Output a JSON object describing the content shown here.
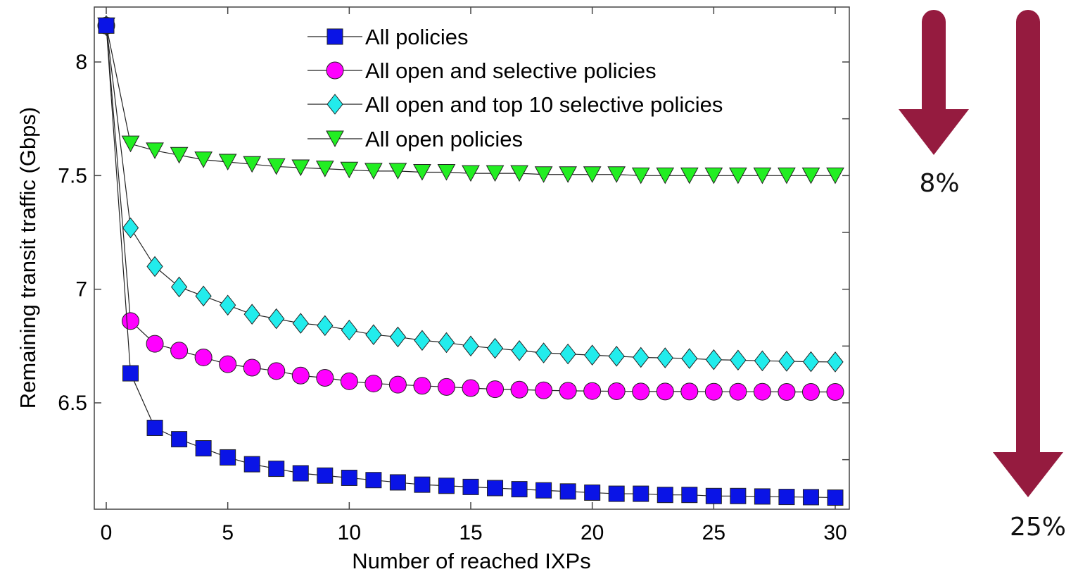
{
  "chart_data": {
    "type": "line",
    "title": "",
    "xlabel": "Number of reached IXPs",
    "ylabel": "Remaining transit traffic (Gbps)",
    "xlim": [
      -0.5,
      30.5
    ],
    "ylim": [
      6.08,
      8.2
    ],
    "xticks": [
      0,
      5,
      10,
      15,
      20,
      25,
      30
    ],
    "xtick_labels": [
      "0",
      "5",
      "10",
      "15",
      "20",
      "25",
      "30"
    ],
    "yticks": [
      6.5,
      7,
      7.5,
      8
    ],
    "ytick_labels": [
      "6.5",
      "7",
      "7.5",
      "8"
    ],
    "grid": false,
    "legend_position": "top",
    "x": [
      0,
      1,
      2,
      3,
      4,
      5,
      6,
      7,
      8,
      9,
      10,
      11,
      12,
      13,
      14,
      15,
      16,
      17,
      18,
      19,
      20,
      21,
      22,
      23,
      24,
      25,
      26,
      27,
      28,
      29,
      30
    ],
    "series": [
      {
        "name": "All policies",
        "marker": "square",
        "color": "#0a14e6",
        "values": [
          8.16,
          6.63,
          6.39,
          6.34,
          6.3,
          6.26,
          6.23,
          6.21,
          6.19,
          6.18,
          6.17,
          6.16,
          6.15,
          6.14,
          6.135,
          6.13,
          6.125,
          6.12,
          6.115,
          6.11,
          6.105,
          6.1,
          6.1,
          6.095,
          6.095,
          6.09,
          6.09,
          6.088,
          6.086,
          6.085,
          6.083
        ]
      },
      {
        "name": "All open and selective policies",
        "marker": "circle",
        "color": "#ff00ff",
        "values": [
          8.16,
          6.86,
          6.76,
          6.73,
          6.7,
          6.67,
          6.655,
          6.64,
          6.62,
          6.61,
          6.595,
          6.585,
          6.58,
          6.575,
          6.57,
          6.565,
          6.56,
          6.558,
          6.555,
          6.553,
          6.552,
          6.551,
          6.55,
          6.55,
          6.55,
          6.549,
          6.549,
          6.549,
          6.548,
          6.548,
          6.548
        ]
      },
      {
        "name": "All open and top 10 selective policies",
        "marker": "diamond",
        "color": "#22ecec",
        "values": [
          8.16,
          7.27,
          7.1,
          7.01,
          6.97,
          6.93,
          6.89,
          6.87,
          6.85,
          6.84,
          6.82,
          6.8,
          6.79,
          6.775,
          6.765,
          6.75,
          6.74,
          6.73,
          6.72,
          6.715,
          6.71,
          6.705,
          6.7,
          6.698,
          6.695,
          6.69,
          6.688,
          6.685,
          6.683,
          6.681,
          6.68
        ]
      },
      {
        "name": "All open policies",
        "marker": "triangle-down",
        "color": "#22ee22",
        "values": [
          8.16,
          7.64,
          7.61,
          7.59,
          7.57,
          7.56,
          7.55,
          7.54,
          7.535,
          7.53,
          7.525,
          7.52,
          7.52,
          7.515,
          7.515,
          7.51,
          7.51,
          7.51,
          7.505,
          7.505,
          7.505,
          7.505,
          7.5,
          7.5,
          7.5,
          7.5,
          7.5,
          7.5,
          7.5,
          7.5,
          7.5
        ]
      }
    ]
  },
  "annotations": [
    {
      "label": "8%",
      "color": "#951b3f"
    },
    {
      "label": "25%",
      "color": "#951b3f"
    }
  ]
}
